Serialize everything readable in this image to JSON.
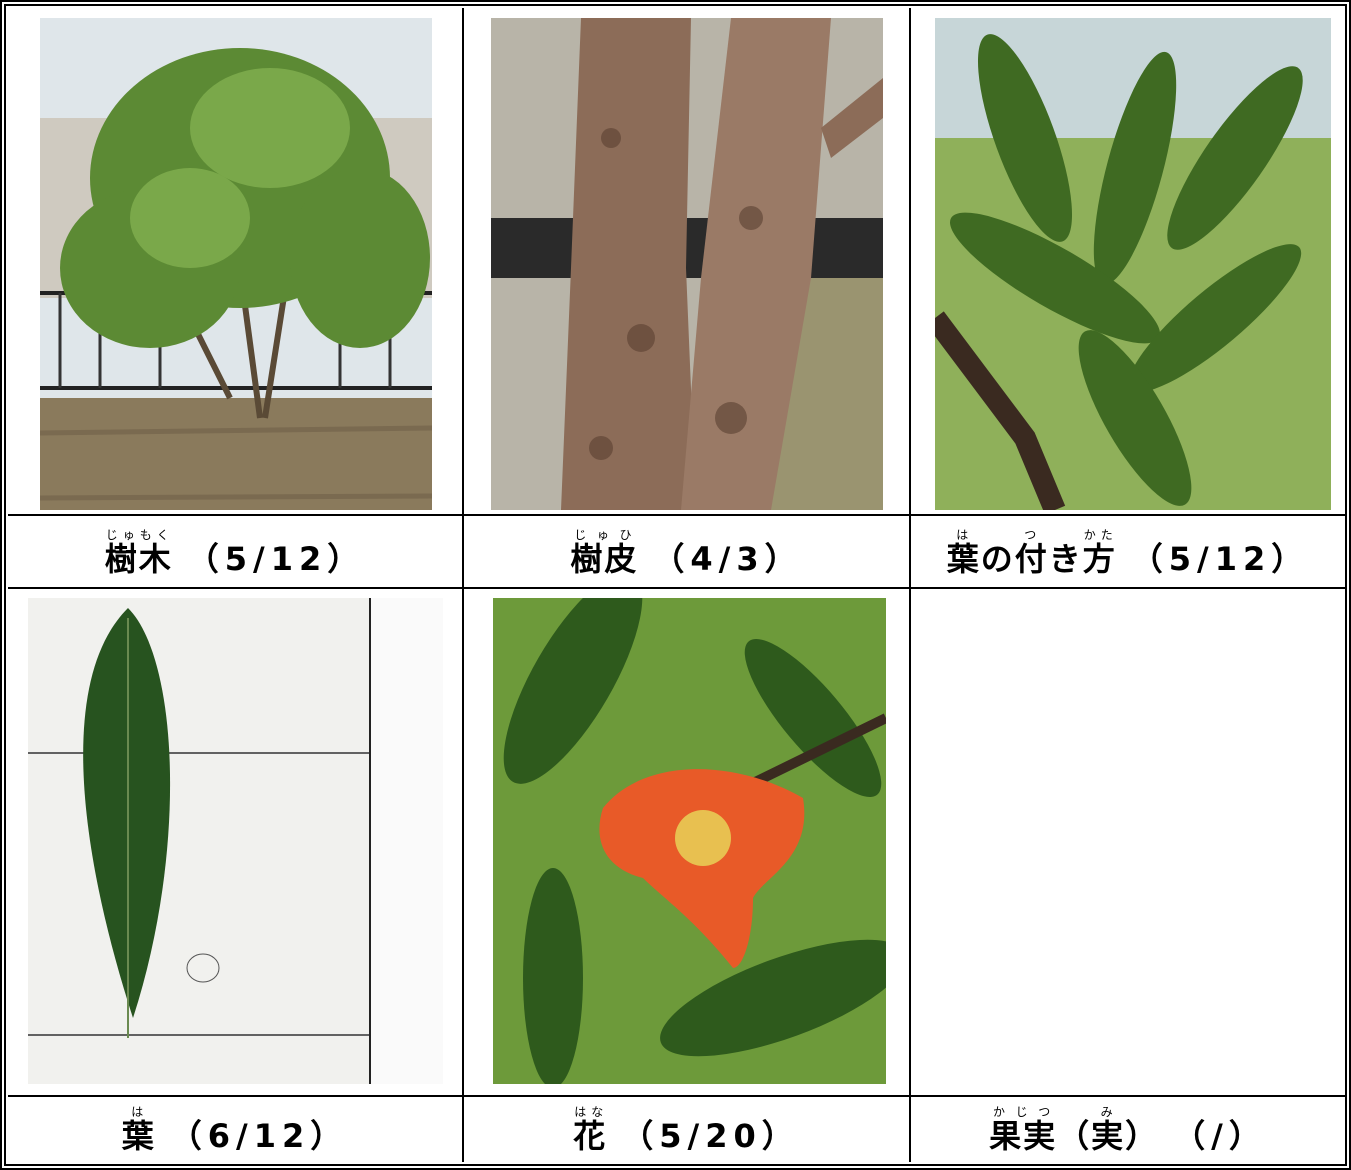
{
  "table": {
    "cells": [
      {
        "caption": [
          {
            "text": "樹木",
            "ruby": "じゅもく"
          }
        ],
        "date": "（5/12）"
      },
      {
        "caption": [
          {
            "text": "樹皮",
            "ruby": "じゅひ"
          }
        ],
        "date": "（4/3）"
      },
      {
        "caption": [
          {
            "text": "葉",
            "ruby": "は"
          },
          {
            "text": "の"
          },
          {
            "text": "付",
            "ruby": "つ"
          },
          {
            "text": "き"
          },
          {
            "text": "方",
            "ruby": "かた"
          }
        ],
        "date": "（5/12）"
      },
      {
        "caption": [
          {
            "text": "葉",
            "ruby": "は"
          }
        ],
        "date": "（6/12）"
      },
      {
        "caption": [
          {
            "text": "花",
            "ruby": "はな"
          }
        ],
        "date": "（5/20）"
      },
      {
        "caption": [
          {
            "text": "果実",
            "ruby": "かじつ"
          },
          {
            "text": "（"
          },
          {
            "text": "実",
            "ruby": "み"
          },
          {
            "text": "）"
          }
        ],
        "date": "（/）"
      }
    ]
  }
}
